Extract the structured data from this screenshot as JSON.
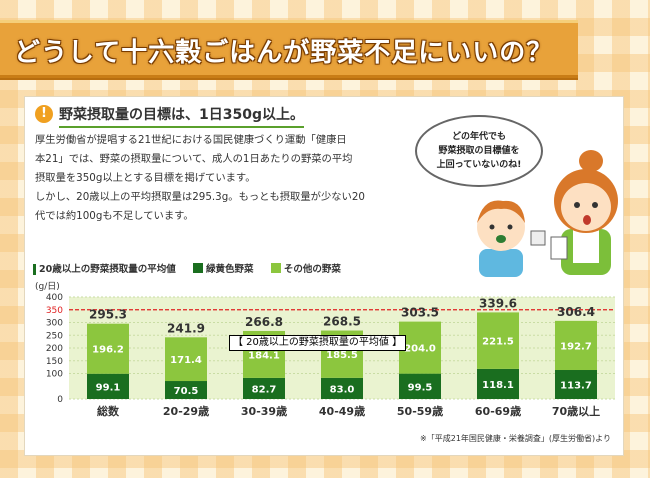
{
  "title": "どうして十六穀ごはんが野菜不足にいいの？",
  "goal_heading": "野菜摂取量の目標は、1日350g以上。",
  "body_lines": [
    "厚生労働省が提唱する21世紀における国民健康づくり運動「健康日",
    "本21」では、野菜の摂取量について、成人の1日あたりの野菜の平均",
    "摂取量を350g以上とする目標を掲げています。",
    "しかし、20歳以上の平均摂取量は295.3g。もっとも摂取量が少ない20",
    "代では約100gも不足しています。"
  ],
  "speech_bubble": [
    "どの年代でも",
    "野菜摂取の目標値を",
    "上回っていないのね!"
  ],
  "tooltip": "【 20歳以上の野菜摂取量の平均値 】",
  "source_note": "※「平成21年国民健康・栄養調査」(厚生労働省)より",
  "colors": {
    "dark_green": "#1a6e1f",
    "light_green": "#8cc63e",
    "target_line": "#e02020",
    "grid_bg": "#eaf3d0",
    "title_banner": "#e8a23a"
  },
  "chart_data": {
    "type": "bar",
    "stacked": true,
    "title": "20歳以上の野菜摂取量の平均値",
    "ylabel": "(g/日)",
    "ylim": [
      0,
      400
    ],
    "yticks": [
      0,
      100,
      150,
      200,
      250,
      300,
      350,
      400
    ],
    "target_value": 350,
    "categories": [
      "総数",
      "20-29歳",
      "30-39歳",
      "40-49歳",
      "50-59歳",
      "60-69歳",
      "70歳以上"
    ],
    "series": [
      {
        "name": "緑黄色野菜",
        "values": [
          99.1,
          70.5,
          82.7,
          83.0,
          99.5,
          118.1,
          113.7
        ]
      },
      {
        "name": "その他の野菜",
        "values": [
          196.2,
          171.4,
          184.1,
          185.5,
          204.0,
          221.5,
          192.7
        ]
      }
    ],
    "totals": [
      295.3,
      241.9,
      266.8,
      268.5,
      303.5,
      339.6,
      306.4
    ],
    "legend_position": "top-left"
  }
}
